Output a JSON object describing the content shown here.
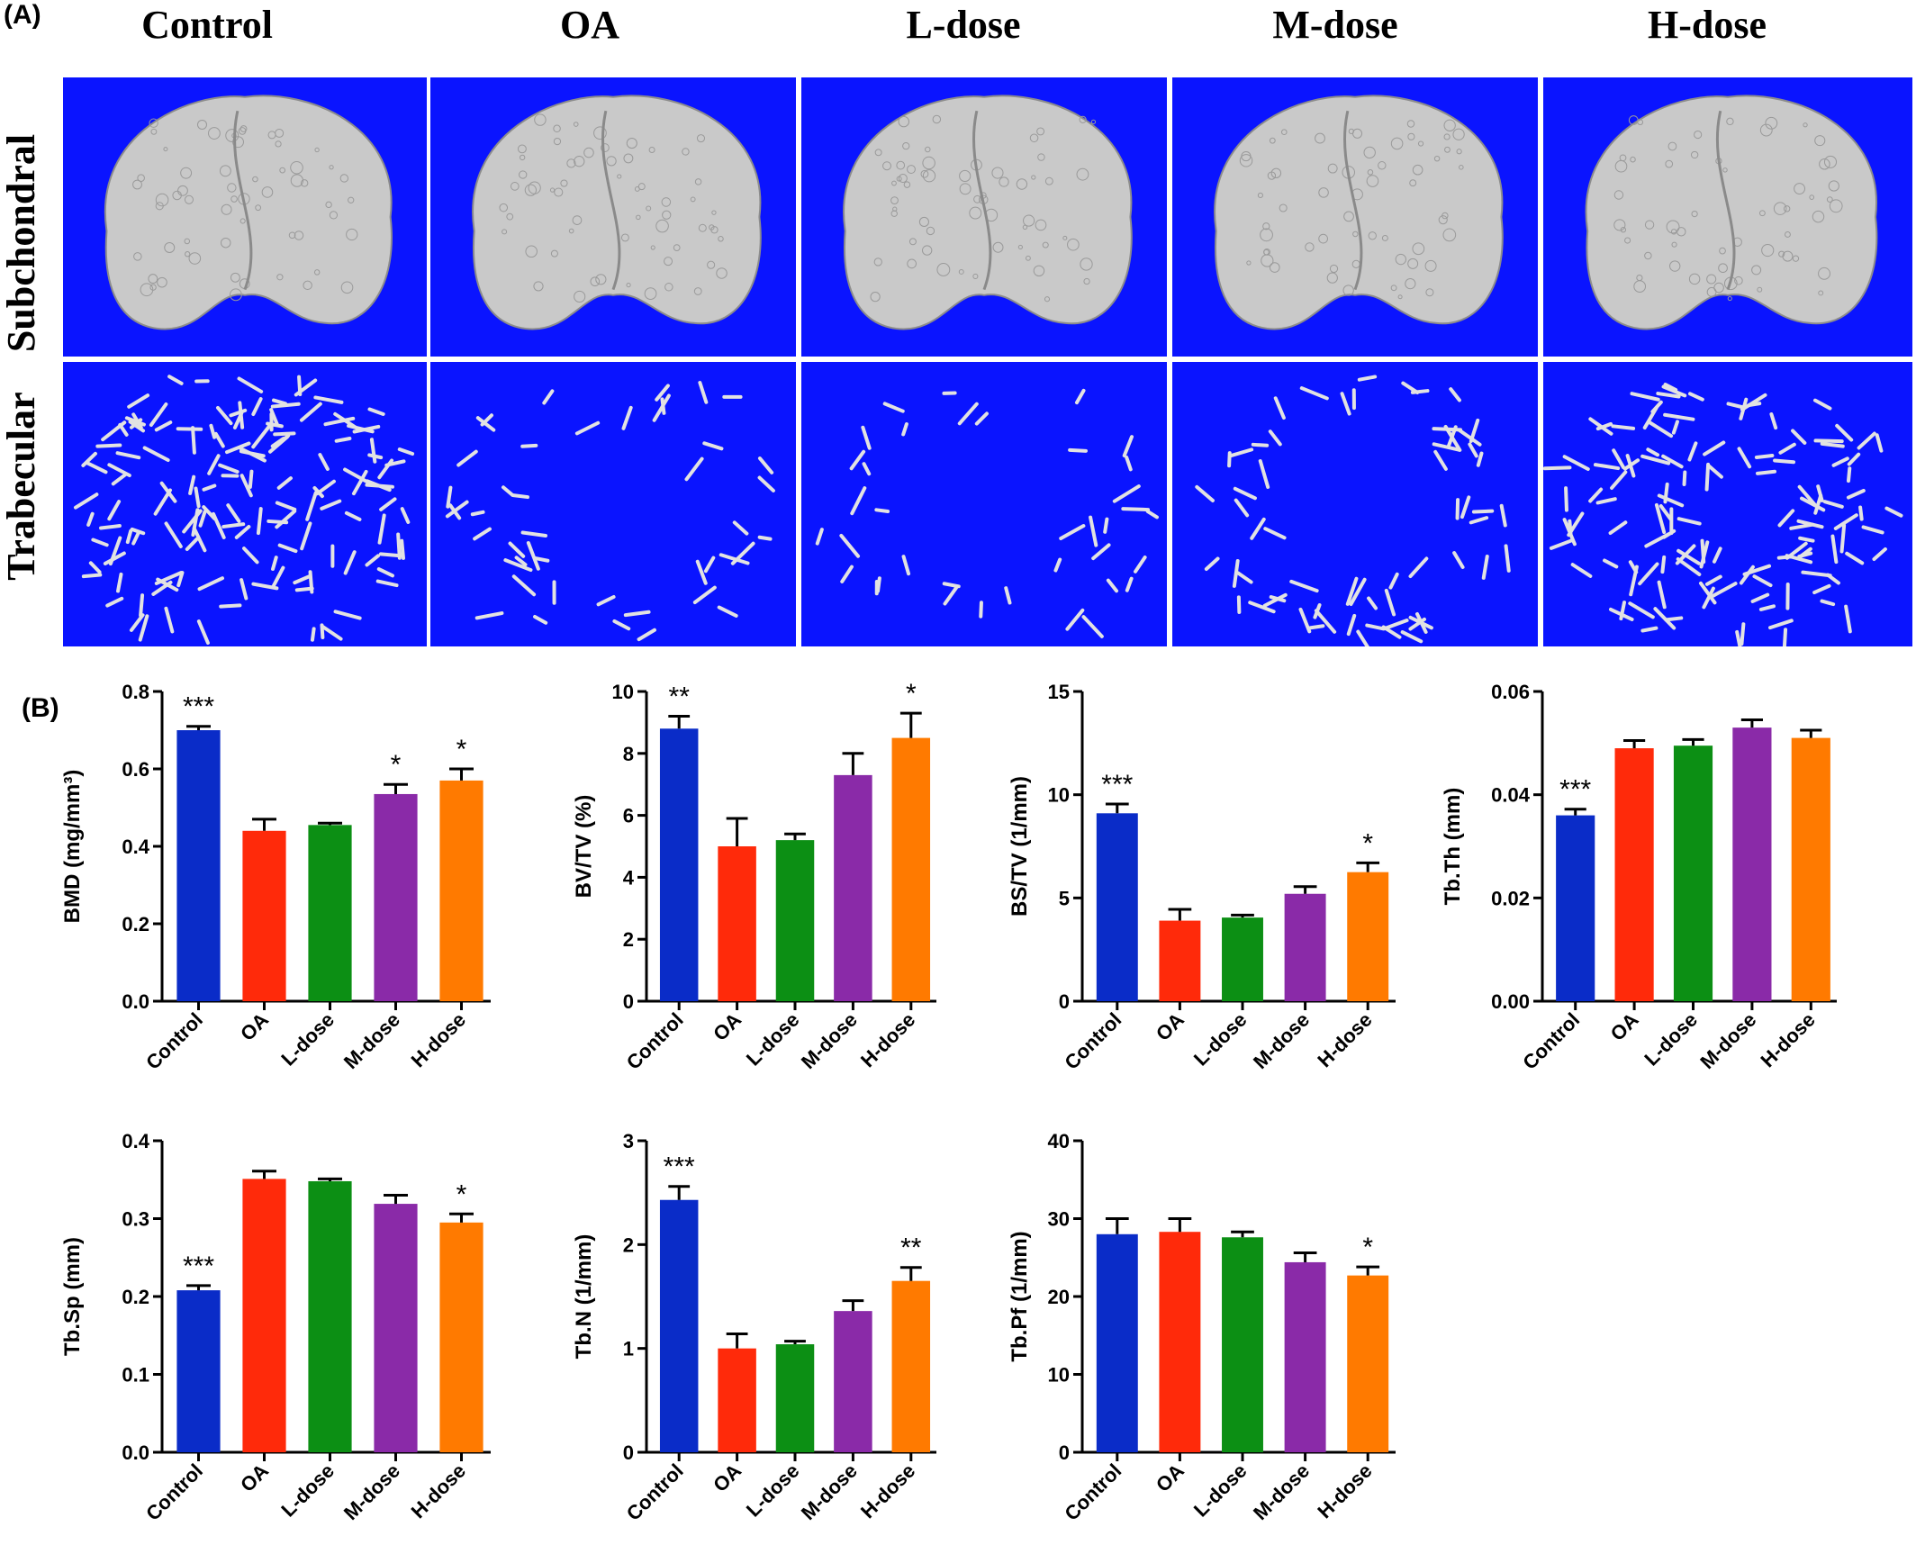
{
  "panel_a": {
    "label": "(A)",
    "columns": [
      "Control",
      "OA",
      "L-dose",
      "M-dose",
      "H-dose"
    ],
    "rows": [
      "Subchondral",
      "Trabecular"
    ],
    "colors": {
      "background": "#0a14ff",
      "bone": "#c9c9c9"
    }
  },
  "panel_b": {
    "label": "(B)"
  },
  "colors": {
    "Control": "#0a2cc8",
    "OA": "#ff2a0a",
    "L-dose": "#0c8f14",
    "M-dose": "#8a2aa8",
    "H-dose": "#ff7a00"
  },
  "chart_data": [
    {
      "type": "bar",
      "ylabel": "BMD (mg/mm³)",
      "categories": [
        "Control",
        "OA",
        "L-dose",
        "M-dose",
        "H-dose"
      ],
      "values": [
        0.7,
        0.44,
        0.455,
        0.535,
        0.57
      ],
      "errors": [
        0.01,
        0.03,
        0.005,
        0.025,
        0.03
      ],
      "significance": [
        "***",
        "",
        "",
        "*",
        "*"
      ],
      "ylim": [
        0,
        0.8
      ],
      "yticks": [
        "0.0",
        "0.2",
        "0.4",
        "0.6",
        "0.8"
      ]
    },
    {
      "type": "bar",
      "ylabel": "BV/TV (%)",
      "categories": [
        "Control",
        "OA",
        "L-dose",
        "M-dose",
        "H-dose"
      ],
      "values": [
        8.8,
        5.0,
        5.2,
        7.3,
        8.5
      ],
      "errors": [
        0.4,
        0.9,
        0.2,
        0.7,
        0.8
      ],
      "significance": [
        "**",
        "",
        "",
        "",
        "*"
      ],
      "ylim": [
        0,
        10
      ],
      "yticks": [
        "0",
        "2",
        "4",
        "6",
        "8",
        "10"
      ]
    },
    {
      "type": "bar",
      "ylabel": "BS/TV (1/mm)",
      "categories": [
        "Control",
        "OA",
        "L-dose",
        "M-dose",
        "H-dose"
      ],
      "values": [
        9.1,
        3.9,
        4.05,
        5.2,
        6.25
      ],
      "errors": [
        0.45,
        0.55,
        0.12,
        0.35,
        0.45
      ],
      "significance": [
        "***",
        "",
        "",
        "",
        "*"
      ],
      "ylim": [
        0,
        15
      ],
      "yticks": [
        "0",
        "5",
        "10",
        "15"
      ]
    },
    {
      "type": "bar",
      "ylabel": "Tb.Th (mm)",
      "categories": [
        "Control",
        "OA",
        "L-dose",
        "M-dose",
        "H-dose"
      ],
      "values": [
        0.036,
        0.049,
        0.0495,
        0.053,
        0.051
      ],
      "errors": [
        0.0012,
        0.0015,
        0.0012,
        0.0015,
        0.0015
      ],
      "significance": [
        "***",
        "",
        "",
        "",
        ""
      ],
      "ylim": [
        0,
        0.06
      ],
      "yticks": [
        "0.00",
        "0.02",
        "0.04",
        "0.06"
      ]
    },
    {
      "type": "bar",
      "ylabel": "Tb.Sp (mm)",
      "categories": [
        "Control",
        "OA",
        "L-dose",
        "M-dose",
        "H-dose"
      ],
      "values": [
        0.208,
        0.351,
        0.348,
        0.319,
        0.295
      ],
      "errors": [
        0.006,
        0.01,
        0.003,
        0.011,
        0.011
      ],
      "significance": [
        "***",
        "",
        "",
        "",
        "*"
      ],
      "ylim": [
        0,
        0.4
      ],
      "yticks": [
        "0.0",
        "0.1",
        "0.2",
        "0.3",
        "0.4"
      ]
    },
    {
      "type": "bar",
      "ylabel": "Tb.N (1/mm)",
      "categories": [
        "Control",
        "OA",
        "L-dose",
        "M-dose",
        "H-dose"
      ],
      "values": [
        2.43,
        1.0,
        1.04,
        1.36,
        1.65
      ],
      "errors": [
        0.13,
        0.14,
        0.03,
        0.1,
        0.13
      ],
      "significance": [
        "***",
        "",
        "",
        "",
        "**"
      ],
      "ylim": [
        0,
        3
      ],
      "yticks": [
        "0",
        "1",
        "2",
        "3"
      ]
    },
    {
      "type": "bar",
      "ylabel": "Tb.Pf (1/mm)",
      "categories": [
        "Control",
        "OA",
        "L-dose",
        "M-dose",
        "H-dose"
      ],
      "values": [
        28.0,
        28.3,
        27.6,
        24.4,
        22.7
      ],
      "errors": [
        2.0,
        1.7,
        0.7,
        1.2,
        1.1
      ],
      "significance": [
        "",
        "",
        "",
        "",
        "*"
      ],
      "ylim": [
        0,
        40
      ],
      "yticks": [
        "0",
        "10",
        "20",
        "30",
        "40"
      ]
    }
  ]
}
